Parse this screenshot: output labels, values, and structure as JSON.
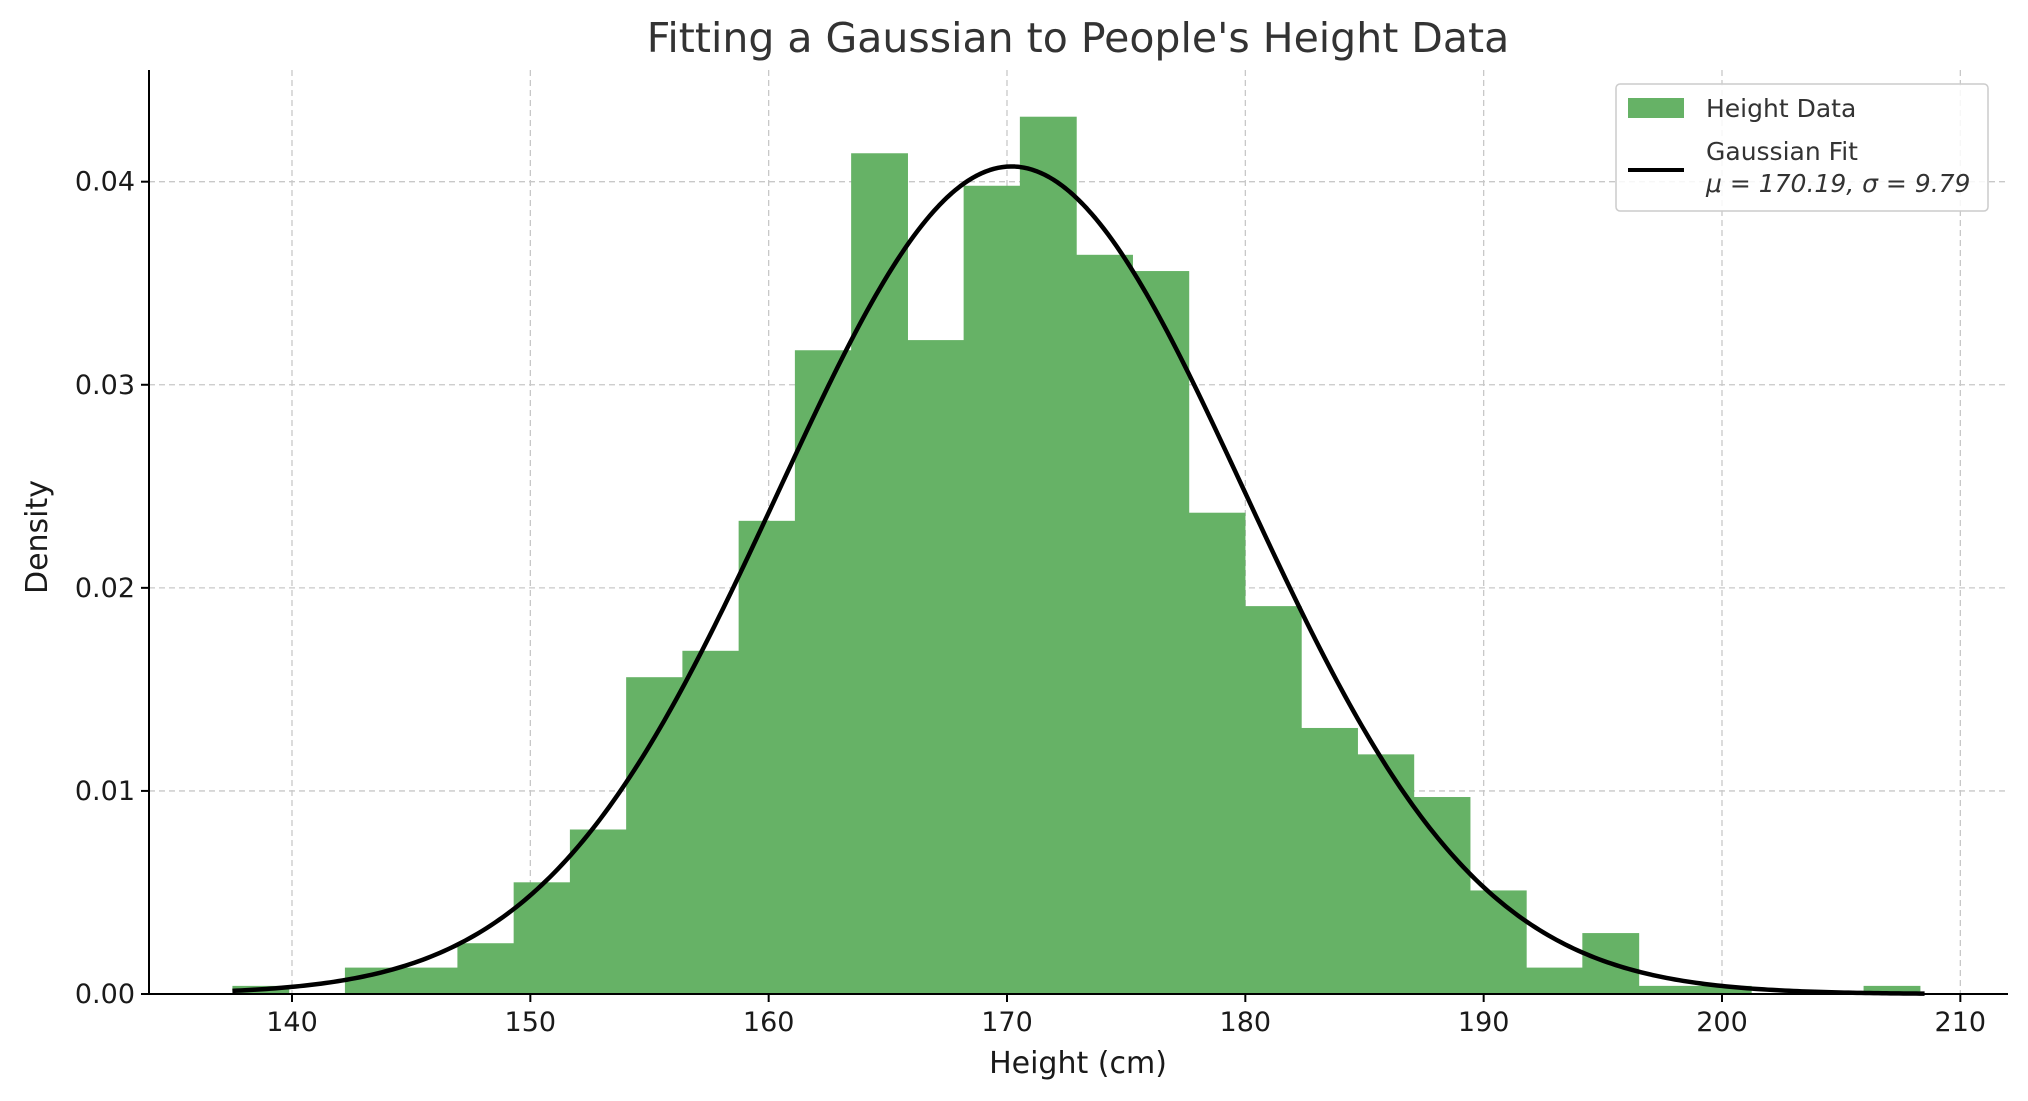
{
  "chart_data": {
    "type": "bar",
    "title": "Fitting a Gaussian to People's Height Data",
    "xlabel": "Height (cm)",
    "ylabel": "Density",
    "xlim": [
      134,
      212
    ],
    "ylim": [
      0,
      0.0455
    ],
    "x_ticks": [
      140,
      150,
      160,
      170,
      180,
      190,
      200,
      210
    ],
    "x_tick_labels": [
      "140",
      "150",
      "160",
      "170",
      "180",
      "190",
      "200",
      "210"
    ],
    "y_ticks": [
      0,
      0.01,
      0.02,
      0.03,
      0.04
    ],
    "y_tick_labels": [
      "0.00",
      "0.01",
      "0.02",
      "0.03",
      "0.04"
    ],
    "grid": true,
    "legend_position": "top-right",
    "histogram": {
      "name": "Height Data",
      "color": "#66b266",
      "bin_start": 137.5,
      "bin_width": 2.36,
      "values": [
        0.0004,
        0.0,
        0.0013,
        0.0013,
        0.0025,
        0.0055,
        0.0081,
        0.0156,
        0.0169,
        0.0233,
        0.0317,
        0.0414,
        0.0322,
        0.0398,
        0.0432,
        0.0364,
        0.0356,
        0.0237,
        0.0191,
        0.0131,
        0.0118,
        0.0097,
        0.0051,
        0.0013,
        0.003,
        0.0004,
        0.0004,
        0.0,
        0.0,
        0.0004
      ]
    },
    "gaussian_fit": {
      "name": "Gaussian Fit",
      "label_math": "μ = 170.19, σ = 9.79",
      "mu": 170.19,
      "sigma": 9.79,
      "x_range": [
        137.5,
        208.5
      ],
      "color": "#000000"
    }
  }
}
